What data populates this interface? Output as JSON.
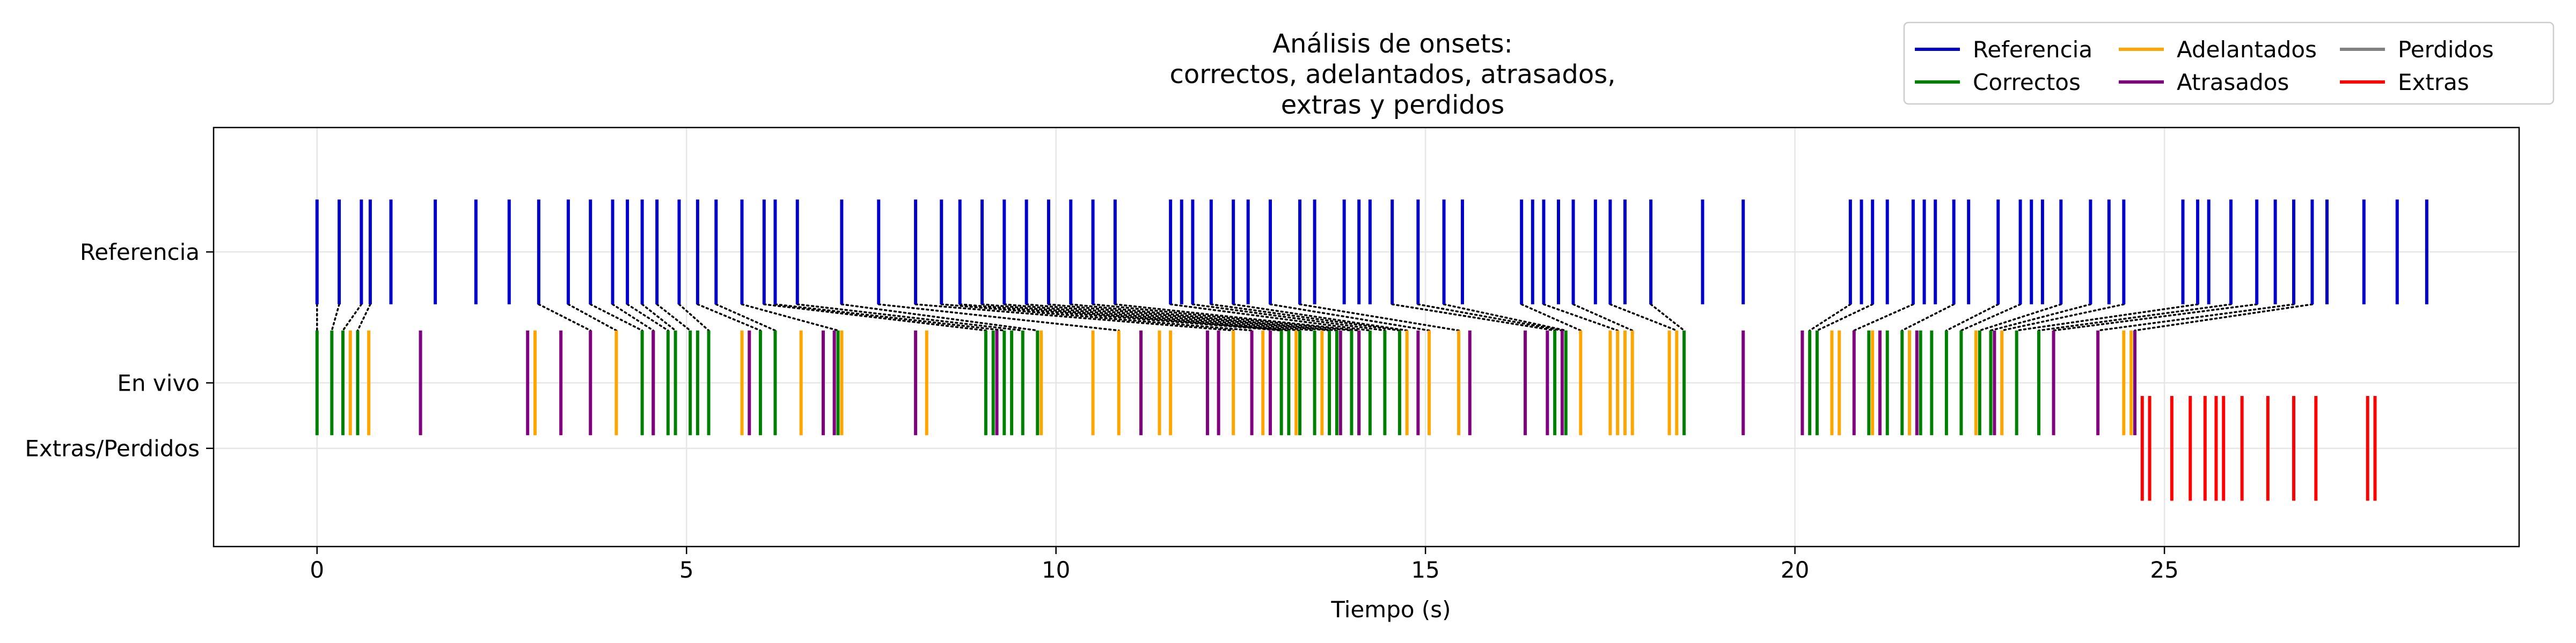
{
  "chart_data": {
    "type": "event",
    "title_lines": [
      "Análisis de onsets:",
      "correctos, adelantados, atrasados,",
      "extras y perdidos"
    ],
    "xlabel": "Tiempo (s)",
    "ylabel": "",
    "xlim": [
      -1.4,
      29.8
    ],
    "x_ticks": [
      0,
      5,
      10,
      15,
      20,
      25
    ],
    "rows": [
      {
        "name": "Referencia",
        "y": 1.0
      },
      {
        "name": "En vivo",
        "y": 0.0
      },
      {
        "name": "Extras/Perdidos",
        "y": -0.5
      }
    ],
    "grid": true,
    "legend": {
      "position": "top-right",
      "columns": 3
    },
    "colors": {
      "Referencia": "#0000cc",
      "Correctos": "#008000",
      "Adelantados": "#ffa500",
      "Atrasados": "#800080",
      "Perdidos": "#808080",
      "Extras": "#ff0000",
      "link": "#000000"
    },
    "series": [
      {
        "name": "Referencia",
        "row": "Referencia",
        "x": [
          0.0,
          0.3,
          0.6,
          0.72,
          1.0,
          1.6,
          2.15,
          2.6,
          3.0,
          3.4,
          3.7,
          4.0,
          4.2,
          4.4,
          4.6,
          4.9,
          5.15,
          5.4,
          5.75,
          6.05,
          6.2,
          6.5,
          7.1,
          7.6,
          8.1,
          8.45,
          8.7,
          9.0,
          9.3,
          9.6,
          9.9,
          10.2,
          10.5,
          10.8,
          11.55,
          11.7,
          11.85,
          12.1,
          12.4,
          12.6,
          12.9,
          13.3,
          13.5,
          13.9,
          14.1,
          14.25,
          14.55,
          14.9,
          15.25,
          15.5,
          16.3,
          16.45,
          16.6,
          16.8,
          17.0,
          17.3,
          17.5,
          17.7,
          18.05,
          18.75,
          19.3,
          20.75,
          20.9,
          21.05,
          21.25,
          21.6,
          21.75,
          21.9,
          22.15,
          22.35,
          22.75,
          23.05,
          23.2,
          23.35,
          23.6,
          24.0,
          24.25,
          24.45,
          25.25,
          25.45,
          25.6,
          25.9,
          26.25,
          26.5,
          26.75,
          27.0,
          27.2,
          27.7,
          28.15,
          28.55
        ]
      },
      {
        "name": "Correctos",
        "row": "En vivo",
        "x": [
          0.0,
          0.2,
          0.35,
          0.55,
          4.4,
          4.55,
          4.75,
          4.85,
          5.05,
          5.15,
          5.3,
          6.0,
          6.2,
          7.05,
          9.05,
          9.15,
          9.3,
          9.4,
          9.55,
          9.75,
          13.05,
          13.15,
          13.3,
          13.5,
          13.7,
          13.8,
          14.0,
          14.1,
          14.25,
          14.45,
          14.65,
          16.75,
          16.9,
          18.5,
          20.2,
          20.3,
          21.0,
          21.25,
          21.45,
          21.55,
          21.7,
          21.85,
          22.05,
          22.25,
          22.5,
          22.65,
          23.0,
          23.3
        ]
      },
      {
        "name": "Adelantados",
        "row": "En vivo",
        "x": [
          0.45,
          0.7,
          2.95,
          4.05,
          5.75,
          6.55,
          7.1,
          8.25,
          9.8,
          10.5,
          10.85,
          11.4,
          11.55,
          12.4,
          12.8,
          13.25,
          13.6,
          14.75,
          15.05,
          15.45,
          17.1,
          17.5,
          17.6,
          17.7,
          17.8,
          18.3,
          18.4,
          20.5,
          20.6,
          21.05,
          21.55,
          22.45,
          22.8,
          24.45,
          24.55
        ]
      },
      {
        "name": "Atrasados",
        "row": "En vivo",
        "x": [
          1.4,
          2.85,
          3.3,
          3.7,
          4.55,
          5.85,
          6.85,
          7.0,
          8.1,
          9.2,
          11.15,
          12.05,
          12.2,
          12.65,
          12.9,
          13.85,
          14.1,
          14.9,
          15.6,
          16.35,
          16.65,
          16.85,
          19.3,
          20.1,
          20.8,
          21.15,
          21.65,
          22.7,
          23.5,
          24.1,
          24.6
        ]
      },
      {
        "name": "Perdidos",
        "row": "Extras/Perdidos",
        "x": []
      },
      {
        "name": "Extras",
        "row": "Extras/Perdidos",
        "x": [
          24.7,
          24.8,
          25.1,
          25.35,
          25.55,
          25.7,
          25.8,
          26.05,
          26.4,
          26.75,
          27.05,
          27.75,
          27.85
        ]
      }
    ],
    "links": [
      [
        0.0,
        0.0
      ],
      [
        0.3,
        0.2
      ],
      [
        0.6,
        0.35
      ],
      [
        0.72,
        0.55
      ],
      [
        3.0,
        3.7
      ],
      [
        3.4,
        4.05
      ],
      [
        3.7,
        4.4
      ],
      [
        4.0,
        4.55
      ],
      [
        4.2,
        4.75
      ],
      [
        4.4,
        4.85
      ],
      [
        4.6,
        5.05
      ],
      [
        4.9,
        5.3
      ],
      [
        5.15,
        6.0
      ],
      [
        5.4,
        6.2
      ],
      [
        5.75,
        7.05
      ],
      [
        6.05,
        9.05
      ],
      [
        6.2,
        9.3
      ],
      [
        6.5,
        9.55
      ],
      [
        7.1,
        9.75
      ],
      [
        7.6,
        10.85
      ],
      [
        8.1,
        12.4
      ],
      [
        8.45,
        12.65
      ],
      [
        8.7,
        13.05
      ],
      [
        9.0,
        13.15
      ],
      [
        9.3,
        13.3
      ],
      [
        9.6,
        13.5
      ],
      [
        9.9,
        13.7
      ],
      [
        10.2,
        13.8
      ],
      [
        10.5,
        14.0
      ],
      [
        10.8,
        14.1
      ],
      [
        11.55,
        14.25
      ],
      [
        11.85,
        14.45
      ],
      [
        12.1,
        14.65
      ],
      [
        12.4,
        14.75
      ],
      [
        12.9,
        15.05
      ],
      [
        13.3,
        15.45
      ],
      [
        14.55,
        16.75
      ],
      [
        14.9,
        16.85
      ],
      [
        15.25,
        16.9
      ],
      [
        16.3,
        17.1
      ],
      [
        16.6,
        17.6
      ],
      [
        17.0,
        17.8
      ],
      [
        17.5,
        18.4
      ],
      [
        18.05,
        18.5
      ],
      [
        20.75,
        20.2
      ],
      [
        21.05,
        20.3
      ],
      [
        21.6,
        20.8
      ],
      [
        22.15,
        21.45
      ],
      [
        22.75,
        22.05
      ],
      [
        23.05,
        22.25
      ],
      [
        23.6,
        22.5
      ],
      [
        24.0,
        22.65
      ],
      [
        24.45,
        22.8
      ],
      [
        25.45,
        23.0
      ],
      [
        25.9,
        23.3
      ],
      [
        26.25,
        23.5
      ],
      [
        26.75,
        24.1
      ],
      [
        27.0,
        24.6
      ]
    ]
  }
}
